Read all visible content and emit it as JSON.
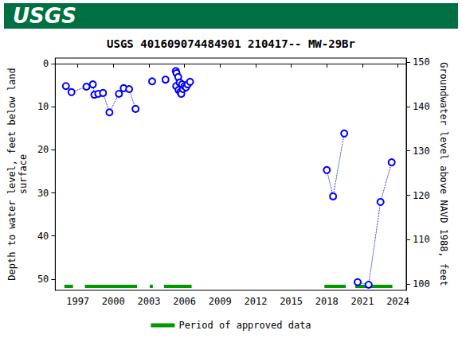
{
  "header": {
    "logo": "USGS"
  },
  "chart_data": {
    "type": "line",
    "title": "USGS 401609074484901 210417-- MW-29Br",
    "y_label": "Depth to water level, feet below land surface",
    "y2_label": "Groundwater level above NAVD 1988, feet",
    "x": [
      1996.0,
      1996.47,
      1997.73,
      1998.27,
      1998.4,
      1998.73,
      1999.13,
      1999.67,
      2000.47,
      2000.87,
      2001.33,
      2001.87,
      2001.87,
      2003.27,
      2003.27,
      2004.4,
      2004.4,
      2005.27,
      2005.3,
      2005.33,
      2005.47,
      2005.5,
      2005.6,
      2005.65,
      2005.73,
      2005.8,
      2005.87,
      2006.0,
      2006.13,
      2006.27,
      2006.47,
      2006.47,
      2018.0,
      2018.53,
      2019.47,
      2019.47,
      2020.6,
      2021.53,
      2022.53,
      2023.47
    ],
    "series": [
      {
        "color": "#0000ff",
        "marker": "open_circle",
        "line_style": "dotted",
        "values": [
          5.2,
          6.6,
          5.35,
          4.8,
          7.2,
          7.0,
          6.8,
          11.3,
          7.0,
          5.7,
          5.9,
          10.5,
          null,
          4.1,
          null,
          3.7,
          null,
          1.7,
          5.2,
          2.2,
          3.1,
          6.1,
          4.4,
          6.6,
          7.0,
          4.8,
          5.9,
          5.2,
          5.5,
          4.8,
          4.2,
          null,
          24.7,
          30.8,
          16.2,
          null,
          50.7,
          51.3,
          32.1,
          22.9
        ]
      }
    ],
    "xlim": [
      1995.1,
      2024.7
    ],
    "xticks": [
      1997,
      2000,
      2003,
      2006,
      2009,
      2012,
      2015,
      2018,
      2021,
      2024
    ],
    "ylim": [
      52.6,
      -1.3
    ],
    "yticks": [
      0,
      10,
      20,
      30,
      40,
      50
    ],
    "y2lim": [
      98.6,
      150.9
    ],
    "y2ticks": [
      100,
      110,
      120,
      130,
      140,
      150
    ],
    "approved_periods": {
      "name": "Period of approved data",
      "color": "#009900",
      "ranges": [
        [
          1995.87,
          1996.6
        ],
        [
          1997.6,
          2002.0
        ],
        [
          2003.07,
          2003.33
        ],
        [
          2004.27,
          2006.6
        ],
        [
          2017.8,
          2019.6
        ],
        [
          2020.4,
          2023.53
        ]
      ]
    },
    "grid": false,
    "legend": "bottom"
  }
}
